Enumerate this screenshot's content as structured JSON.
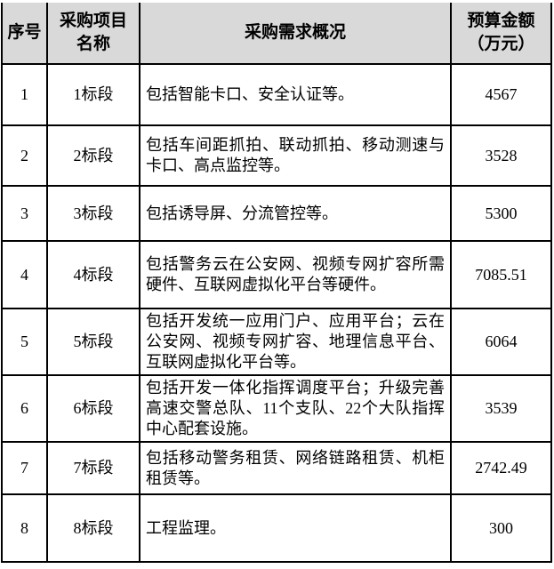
{
  "table": {
    "header": {
      "no": "序号",
      "name_line1": "采购项目",
      "name_line2": "名称",
      "desc": "采购需求概况",
      "budget_line1": "预算金额",
      "budget_line2": "（万元）"
    },
    "rows": [
      {
        "no": "1",
        "name": "1标段",
        "desc": "包括智能卡口、安全认证等。",
        "budget": "4567"
      },
      {
        "no": "2",
        "name": "2标段",
        "desc": "包括车间距抓拍、联动抓拍、移动测速与卡口、高点监控等。",
        "budget": "3528"
      },
      {
        "no": "3",
        "name": "3标段",
        "desc": "包括诱导屏、分流管控等。",
        "budget": "5300"
      },
      {
        "no": "4",
        "name": "4标段",
        "desc": "包括警务云在公安网、视频专网扩容所需硬件、互联网虚拟化平台等硬件。",
        "budget": "7085.51"
      },
      {
        "no": "5",
        "name": "5标段",
        "desc": "包括开发统一应用门户、应用平台；云在公安网、视频专网扩容、地理信息平台、互联网虚拟化平台等。",
        "budget": "6064"
      },
      {
        "no": "6",
        "name": "6标段",
        "desc": "包括开发一体化指挥调度平台；升级完善高速交警总队、11个支队、22个大队指挥中心配套设施。",
        "budget": "3539"
      },
      {
        "no": "7",
        "name": "7标段",
        "desc": "包括移动警务租赁、网络链路租赁、机柜租赁等。",
        "budget": "2742.49"
      },
      {
        "no": "8",
        "name": "8标段",
        "desc": "工程监理。",
        "budget": "300"
      }
    ]
  },
  "colors": {
    "page_bg": "#ffffff",
    "header_bg": "#d9d9d9",
    "border": "#000000",
    "text": "#000000"
  }
}
